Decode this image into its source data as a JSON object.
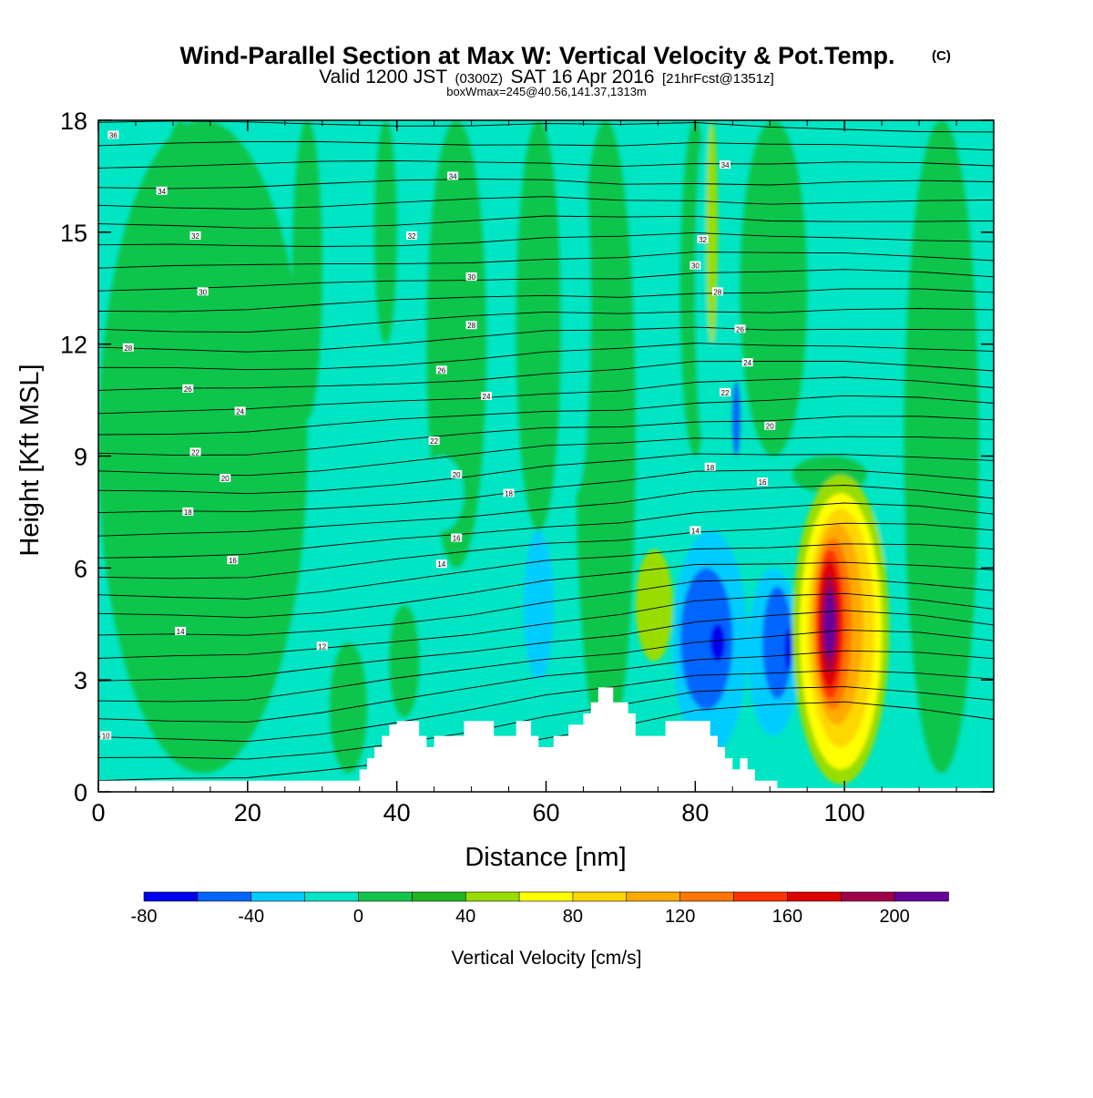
{
  "header": {
    "title": "Wind-Parallel Section at Max W: Vertical Velocity & Pot.Temp.",
    "title_mark": "(C)",
    "valid_prefix": "Valid 1200 JST",
    "valid_utc": "(0300Z)",
    "valid_date": "SAT 16 Apr 2016",
    "forecast": "[21hrFcst@1351z]",
    "boxwmax": "boxWmax=245@40.56,141.37,1313m"
  },
  "chart_data": {
    "type": "heatmap",
    "xlabel": "Distance [nm]",
    "ylabel": "Height [Kft MSL]",
    "xlim": [
      0,
      120
    ],
    "ylim": [
      0,
      18
    ],
    "x_ticks": [
      "0",
      "20",
      "40",
      "60",
      "80",
      "100"
    ],
    "y_ticks": [
      "0",
      "3",
      "6",
      "9",
      "12",
      "15",
      "18"
    ],
    "x_tick_values": [
      0,
      20,
      40,
      60,
      80,
      100
    ],
    "y_tick_values": [
      0,
      3,
      6,
      9,
      12,
      15,
      18
    ],
    "colorbar": {
      "label": "Vertical Velocity [cm/s]",
      "bounds": [
        -80,
        -60,
        -40,
        -20,
        0,
        20,
        40,
        60,
        80,
        100,
        120,
        140,
        160,
        180,
        200,
        220
      ],
      "tick_labels": [
        "-80",
        "-40",
        "0",
        "40",
        "80",
        "120",
        "160",
        "200"
      ],
      "tick_values": [
        -80,
        -40,
        0,
        40,
        80,
        120,
        160,
        200
      ],
      "colors": [
        "#0000ee",
        "#0066ff",
        "#00ccff",
        "#00e5c3",
        "#11c54b",
        "#22b522",
        "#99dd00",
        "#ffff00",
        "#ffd700",
        "#ffaa00",
        "#ff7700",
        "#ff3300",
        "#dd0000",
        "#a0004a",
        "#660099"
      ]
    },
    "background_color": "#00e5c3",
    "vertical_velocity_features": [
      {
        "x": [
          0,
          28
        ],
        "y": [
          0.5,
          18
        ],
        "value": 10
      },
      {
        "x": [
          8,
          14
        ],
        "y": [
          9,
          18
        ],
        "value": 10
      },
      {
        "x": [
          26,
          30
        ],
        "y": [
          10,
          18
        ],
        "value": 10
      },
      {
        "x": [
          37,
          40
        ],
        "y": [
          12,
          18
        ],
        "value": 10
      },
      {
        "x": [
          44,
          52
        ],
        "y": [
          6,
          18
        ],
        "value": 10
      },
      {
        "x": [
          56,
          62
        ],
        "y": [
          7,
          18
        ],
        "value": 10
      },
      {
        "x": [
          64,
          72
        ],
        "y": [
          1,
          18
        ],
        "value": 10
      },
      {
        "x": [
          78,
          82
        ],
        "y": [
          9,
          18
        ],
        "value": 10
      },
      {
        "x": [
          86,
          95
        ],
        "y": [
          9,
          18
        ],
        "value": 10
      },
      {
        "x": [
          108,
          118
        ],
        "y": [
          0.5,
          18
        ],
        "value": 10
      },
      {
        "x": [
          31,
          36
        ],
        "y": [
          0.5,
          4
        ],
        "value": 10
      },
      {
        "x": [
          39,
          43
        ],
        "y": [
          2,
          5
        ],
        "value": 10
      },
      {
        "x": [
          43,
          49
        ],
        "y": [
          7,
          9
        ],
        "value": -10
      },
      {
        "x": [
          62,
          66
        ],
        "y": [
          8,
          18
        ],
        "value": -10
      },
      {
        "x": [
          57,
          61
        ],
        "y": [
          3,
          7
        ],
        "value": -30
      },
      {
        "x": [
          80,
          83
        ],
        "y": [
          9,
          18
        ],
        "value": -10
      },
      {
        "x": [
          72,
          77
        ],
        "y": [
          3.5,
          6.5
        ],
        "value": 50
      },
      {
        "x": [
          81.5,
          83
        ],
        "y": [
          12,
          18
        ],
        "value": 50
      },
      {
        "x": [
          85,
          86
        ],
        "y": [
          9,
          11
        ],
        "value": -50
      },
      {
        "x": [
          77,
          87
        ],
        "y": [
          1,
          7
        ],
        "value": -30
      },
      {
        "x": [
          78,
          85
        ],
        "y": [
          2.2,
          6
        ],
        "value": -50
      },
      {
        "x": [
          82,
          84
        ],
        "y": [
          3.5,
          4.5
        ],
        "value": -70
      },
      {
        "x": [
          87,
          94
        ],
        "y": [
          1.5,
          6
        ],
        "value": -30
      },
      {
        "x": [
          89,
          93
        ],
        "y": [
          2.5,
          5.5
        ],
        "value": -50
      },
      {
        "x": [
          92,
          93
        ],
        "y": [
          3.2,
          4.4
        ],
        "value": -70
      },
      {
        "x": [
          104,
          108
        ],
        "y": [
          6,
          9
        ],
        "value": -20
      },
      {
        "x": [
          93,
          103
        ],
        "y": [
          8,
          9
        ],
        "value": 10
      },
      {
        "x": [
          93,
          106
        ],
        "y": [
          0.2,
          8.5
        ],
        "value": 50
      },
      {
        "x": [
          94,
          105
        ],
        "y": [
          0.6,
          8
        ],
        "value": 70
      },
      {
        "x": [
          95,
          104
        ],
        "y": [
          1.2,
          7.6
        ],
        "value": 90
      },
      {
        "x": [
          95.5,
          102.5
        ],
        "y": [
          1.8,
          7.2
        ],
        "value": 110
      },
      {
        "x": [
          96,
          101
        ],
        "y": [
          2.2,
          6.8
        ],
        "value": 130
      },
      {
        "x": [
          96.2,
          100
        ],
        "y": [
          2.5,
          6.5
        ],
        "value": 150
      },
      {
        "x": [
          96.5,
          99.5
        ],
        "y": [
          2.8,
          6.2
        ],
        "value": 170
      },
      {
        "x": [
          97,
          99
        ],
        "y": [
          3.2,
          5.8
        ],
        "value": 190
      },
      {
        "x": [
          97.2,
          98.8
        ],
        "y": [
          3.6,
          5.4
        ],
        "value": 210
      }
    ],
    "theta_labels": [
      {
        "text": "36",
        "x": 2,
        "y": 17.6
      },
      {
        "text": "34",
        "x": 8.5,
        "y": 16.1
      },
      {
        "text": "34",
        "x": 47.5,
        "y": 16.5
      },
      {
        "text": "34",
        "x": 84,
        "y": 16.8
      },
      {
        "text": "32",
        "x": 13,
        "y": 14.9
      },
      {
        "text": "32",
        "x": 42,
        "y": 14.9
      },
      {
        "text": "32",
        "x": 81,
        "y": 14.8
      },
      {
        "text": "30",
        "x": 14,
        "y": 13.4
      },
      {
        "text": "30",
        "x": 50,
        "y": 13.8
      },
      {
        "text": "30",
        "x": 80,
        "y": 14.1
      },
      {
        "text": "28",
        "x": 4,
        "y": 11.9
      },
      {
        "text": "28",
        "x": 50,
        "y": 12.5
      },
      {
        "text": "28",
        "x": 83,
        "y": 13.4
      },
      {
        "text": "26",
        "x": 12,
        "y": 10.8
      },
      {
        "text": "26",
        "x": 46,
        "y": 11.3
      },
      {
        "text": "26",
        "x": 86,
        "y": 12.4
      },
      {
        "text": "24",
        "x": 19,
        "y": 10.2
      },
      {
        "text": "24",
        "x": 52,
        "y": 10.6
      },
      {
        "text": "24",
        "x": 87,
        "y": 11.5
      },
      {
        "text": "22",
        "x": 13,
        "y": 9.1
      },
      {
        "text": "22",
        "x": 45,
        "y": 9.4
      },
      {
        "text": "22",
        "x": 84,
        "y": 10.7
      },
      {
        "text": "20",
        "x": 17,
        "y": 8.4
      },
      {
        "text": "20",
        "x": 48,
        "y": 8.5
      },
      {
        "text": "20",
        "x": 90,
        "y": 9.8
      },
      {
        "text": "18",
        "x": 12,
        "y": 7.5
      },
      {
        "text": "18",
        "x": 55,
        "y": 8.0
      },
      {
        "text": "18",
        "x": 82,
        "y": 8.7
      },
      {
        "text": "16",
        "x": 18,
        "y": 6.2
      },
      {
        "text": "16",
        "x": 48,
        "y": 6.8
      },
      {
        "text": "16",
        "x": 89,
        "y": 8.3
      },
      {
        "text": "14",
        "x": 11,
        "y": 4.3
      },
      {
        "text": "14",
        "x": 46,
        "y": 6.1
      },
      {
        "text": "14",
        "x": 80,
        "y": 7.0
      },
      {
        "text": "12",
        "x": 30,
        "y": 3.9
      },
      {
        "text": "10",
        "x": 1,
        "y": 1.5
      }
    ],
    "theta_base_height": [
      0.3,
      0.3,
      0.3,
      0.3,
      0.3,
      0.3,
      0.3,
      0.2,
      0.2,
      0.1,
      0.1,
      0.1,
      0.1
    ],
    "theta_mountain_bump": [
      0,
      0,
      0,
      0.4,
      0.9,
      1.4,
      2.0,
      2.6,
      3.2,
      3.6,
      3.8,
      3.6,
      3.2
    ]
  },
  "terrain": {
    "x": [
      0,
      35,
      35,
      36,
      36,
      37,
      37,
      38,
      38,
      39,
      39,
      40,
      40,
      41,
      41,
      43,
      43,
      44,
      44,
      45,
      45,
      49,
      49,
      53,
      53,
      56,
      56,
      58,
      58,
      59,
      59,
      61,
      61,
      63,
      63,
      65,
      65,
      66,
      66,
      67,
      67,
      68,
      68,
      69,
      69,
      71,
      71,
      72,
      72,
      73,
      73,
      74,
      74,
      75,
      75,
      76,
      76,
      77,
      77,
      82,
      82,
      83,
      83,
      84,
      84,
      85,
      85,
      86,
      86,
      87,
      87,
      88,
      88,
      91,
      91,
      95,
      95,
      120
    ],
    "y": [
      0.3,
      0.3,
      0.6,
      0.6,
      0.9,
      0.9,
      1.2,
      1.2,
      1.5,
      1.5,
      1.8,
      1.8,
      1.9,
      1.9,
      1.9,
      1.9,
      1.5,
      1.5,
      1.2,
      1.2,
      1.5,
      1.5,
      1.9,
      1.9,
      1.5,
      1.5,
      1.9,
      1.9,
      1.5,
      1.5,
      1.2,
      1.2,
      1.5,
      1.5,
      1.8,
      1.8,
      2.1,
      2.1,
      2.4,
      2.4,
      2.8,
      2.8,
      2.8,
      2.8,
      2.4,
      2.4,
      2.1,
      2.1,
      1.5,
      1.5,
      1.5,
      1.5,
      1.5,
      1.5,
      1.5,
      1.5,
      1.9,
      1.9,
      1.9,
      1.9,
      1.5,
      1.5,
      1.2,
      1.2,
      0.9,
      0.9,
      0.6,
      0.6,
      0.9,
      0.9,
      0.6,
      0.6,
      0.3,
      0.3,
      0.1,
      0.1,
      0.1,
      0.1
    ]
  }
}
